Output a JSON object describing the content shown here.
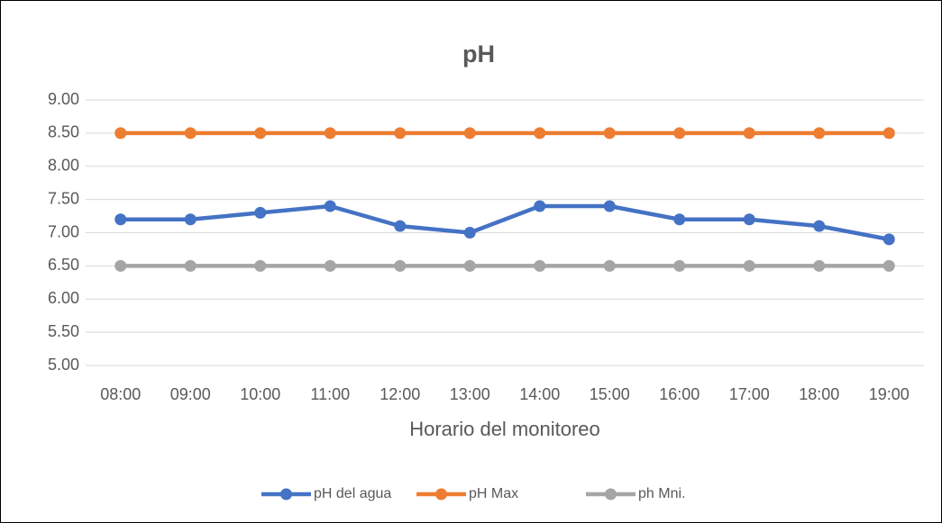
{
  "chart_data": {
    "type": "line",
    "title": "pH",
    "x_label": "Horario del monitoreo",
    "categories": [
      "08:00",
      "09:00",
      "10:00",
      "11:00",
      "12:00",
      "13:00",
      "14:00",
      "15:00",
      "16:00",
      "17:00",
      "18:00",
      "19:00"
    ],
    "series": [
      {
        "name": "pH del agua",
        "color": "#4472c4",
        "values": [
          7.2,
          7.2,
          7.3,
          7.4,
          7.1,
          7.0,
          7.4,
          7.4,
          7.2,
          7.2,
          7.1,
          6.9
        ]
      },
      {
        "name": "pH Max",
        "color": "#ed7d31",
        "values": [
          8.5,
          8.5,
          8.5,
          8.5,
          8.5,
          8.5,
          8.5,
          8.5,
          8.5,
          8.5,
          8.5,
          8.5
        ]
      },
      {
        "name": "ph Mni.",
        "color": "#a5a5a5",
        "values": [
          6.5,
          6.5,
          6.5,
          6.5,
          6.5,
          6.5,
          6.5,
          6.5,
          6.5,
          6.5,
          6.5,
          6.5
        ]
      }
    ],
    "ylim": [
      5,
      9
    ],
    "yticks": [
      {
        "value": 5,
        "label": "5.00"
      },
      {
        "value": 5.5,
        "label": "5.50"
      },
      {
        "value": 6,
        "label": "6.00"
      },
      {
        "value": 6.5,
        "label": "6.50"
      },
      {
        "value": 7,
        "label": "7.00"
      },
      {
        "value": 7.5,
        "label": "7.50"
      },
      {
        "value": 8,
        "label": "8.00"
      },
      {
        "value": 8.5,
        "label": "8.50"
      },
      {
        "value": 9,
        "label": "9.00"
      }
    ],
    "grid": true,
    "legend": "bottom"
  }
}
